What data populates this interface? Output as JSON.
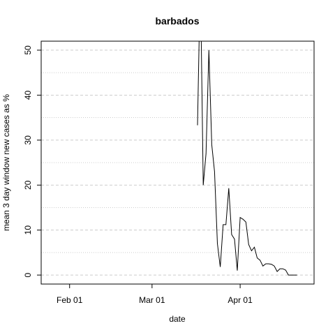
{
  "chart_data": {
    "type": "line",
    "title": "barbados",
    "xlabel": "date",
    "ylabel": "mean  3  day window new cases as %",
    "xlim": [
      "2020-01-22",
      "2020-04-27"
    ],
    "ylim": [
      -2,
      52
    ],
    "x_ticks": [
      {
        "date": "2020-02-01",
        "label": "Feb 01"
      },
      {
        "date": "2020-03-01",
        "label": "Mar 01"
      },
      {
        "date": "2020-04-01",
        "label": "Apr 01"
      }
    ],
    "y_ticks": [
      0,
      10,
      20,
      30,
      40,
      50
    ],
    "grid": {
      "major": "dashed",
      "minor": "dotted",
      "minor_y": [
        5,
        15,
        25,
        35,
        45
      ]
    },
    "series": [
      {
        "color": "#000000",
        "x": [
          "2020-03-17",
          "2020-03-18",
          "2020-03-19",
          "2020-03-20",
          "2020-03-21",
          "2020-03-22",
          "2020-03-23",
          "2020-03-24",
          "2020-03-25",
          "2020-03-26",
          "2020-03-27",
          "2020-03-28",
          "2020-03-29",
          "2020-03-30",
          "2020-03-31",
          "2020-04-01",
          "2020-04-02",
          "2020-04-03",
          "2020-04-04",
          "2020-04-05",
          "2020-04-06",
          "2020-04-07",
          "2020-04-08",
          "2020-04-09",
          "2020-04-10",
          "2020-04-11",
          "2020-04-12",
          "2020-04-13",
          "2020-04-14",
          "2020-04-15",
          "2020-04-16",
          "2020-04-17",
          "2020-04-18",
          "2020-04-19",
          "2020-04-20",
          "2020-04-21",
          "2020-04-22",
          "2020-04-23",
          "2020-04-24"
        ],
        "y": [
          33.3,
          66.7,
          20.0,
          27.0,
          50.0,
          29.0,
          23.0,
          7.0,
          1.8,
          11.2,
          11.2,
          19.3,
          9.0,
          8.0,
          1.0,
          12.8,
          12.4,
          11.8,
          6.8,
          5.4,
          6.2,
          3.8,
          3.3,
          2.0,
          2.5,
          2.5,
          2.4,
          2.0,
          0.8,
          1.4,
          1.4,
          1.1,
          0.0,
          0.0,
          0.0,
          0.0,
          null,
          null,
          null
        ]
      }
    ]
  }
}
